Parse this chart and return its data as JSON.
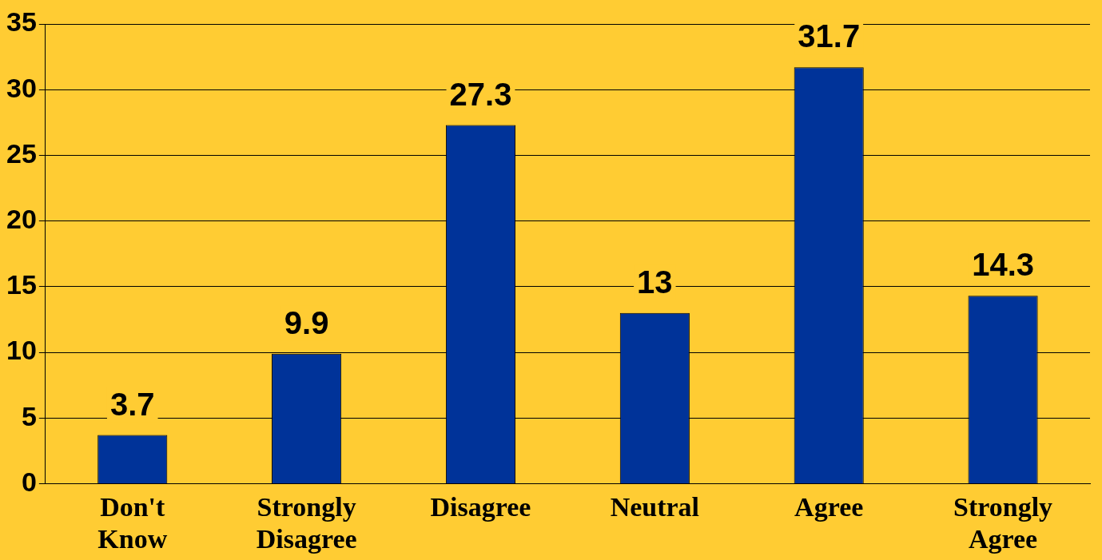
{
  "chart_data": {
    "type": "bar",
    "categories": [
      "Don't Know",
      "Strongly Disagree",
      "Disagree",
      "Neutral",
      "Agree",
      "Strongly Agree"
    ],
    "values": [
      3.7,
      9.9,
      27.3,
      13,
      31.7,
      14.3
    ],
    "color": "#003399",
    "ylim": [
      0,
      35
    ],
    "yticks": [
      0,
      5,
      10,
      15,
      20,
      25,
      30,
      35
    ],
    "grid": "y",
    "data_labels": true,
    "legend": false
  }
}
